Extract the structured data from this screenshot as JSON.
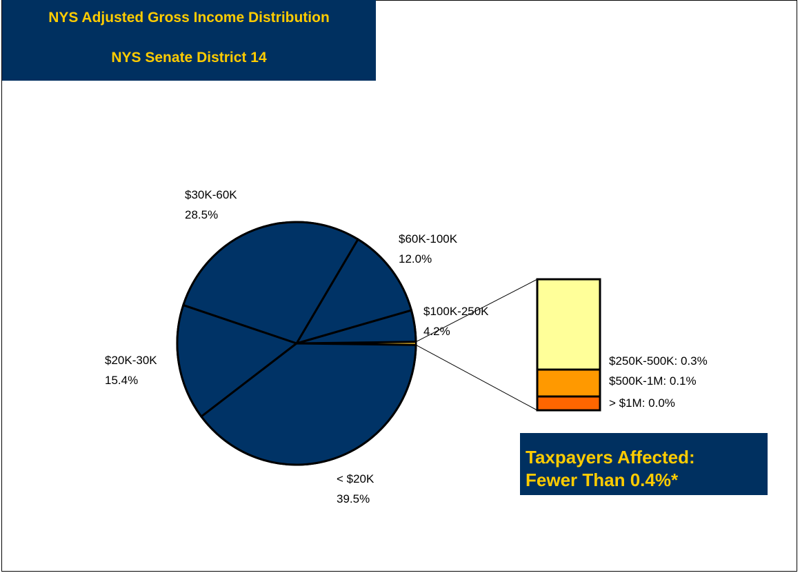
{
  "title": {
    "line1": "NYS Adjusted Gross Income Distribution",
    "line2": "NYS Senate District 14"
  },
  "callout": {
    "line1": "Taxpayers Affected:",
    "line2": "Fewer Than 0.4%*"
  },
  "colors": {
    "navy": "#003060",
    "gold_text": "#ffcc00",
    "pie_fill": "#003366",
    "high_slice": "#ffcc33",
    "bar_250_500": "#ffff99",
    "bar_500_1m": "#ff9900",
    "bar_1m": "#ff6600"
  },
  "chart_data": {
    "type": "pie",
    "title": "NYS Adjusted Gross Income Distribution",
    "subtitle": "NYS Senate District 14",
    "slices": [
      {
        "category": "< $20K",
        "value": 39.5,
        "label": "39.5%"
      },
      {
        "category": "$20K-30K",
        "value": 15.4,
        "label": "15.4%"
      },
      {
        "category": "$30K-60K",
        "value": 28.5,
        "label": "28.5%"
      },
      {
        "category": "$60K-100K",
        "value": 12.0,
        "label": "12.0%"
      },
      {
        "category": "$100K-250K",
        "value": 4.2,
        "label": "4.2%"
      }
    ],
    "detail_bar": {
      "type": "stacked-bar",
      "segments": [
        {
          "category": "$250K-500K",
          "value": 0.3,
          "label": "$250K-500K: 0.3%"
        },
        {
          "category": "$500K-1M",
          "value": 0.1,
          "label": "$500K-1M: 0.1%"
        },
        {
          "category": "> $1M",
          "value": 0.0,
          "label": "> $1M: 0.0%"
        }
      ]
    }
  }
}
